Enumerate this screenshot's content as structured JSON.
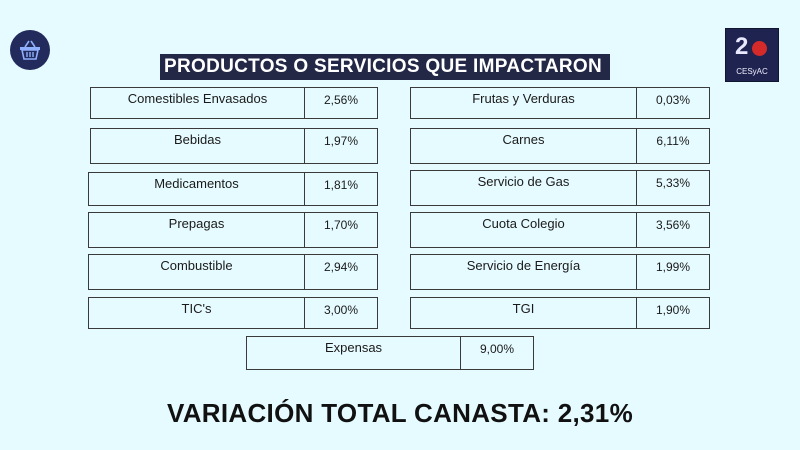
{
  "title": "PRODUCTOS O SERVICIOS QUE IMPACTARON",
  "logo_text": "CESyAC",
  "logo_number": "2",
  "left_items": [
    {
      "name": "Comestibles Envasados",
      "value": "2,56%"
    },
    {
      "name": "Bebidas",
      "value": "1,97%"
    },
    {
      "name": "Medicamentos",
      "value": "1,81%"
    },
    {
      "name": "Prepagas",
      "value": "1,70%"
    },
    {
      "name": "Combustible",
      "value": "2,94%"
    },
    {
      "name": "TIC's",
      "value": "3,00%"
    }
  ],
  "right_items": [
    {
      "name": "Frutas y Verduras",
      "value": "0,03%"
    },
    {
      "name": "Carnes",
      "value": "6,11%"
    },
    {
      "name": "Servicio de Gas",
      "value": "5,33%"
    },
    {
      "name": "Cuota Colegio",
      "value": "3,56%"
    },
    {
      "name": "Servicio de Energía",
      "value": "1,99%"
    },
    {
      "name": "TGI",
      "value": "1,90%"
    }
  ],
  "bottom_item": {
    "name": "Expensas",
    "value": "9,00%"
  },
  "total": "VARIACIÓN TOTAL CANASTA: 2,31%",
  "colors": {
    "background": "#e6fbff",
    "title_bg": "#222846",
    "logo_bg": "#1f2350"
  },
  "icons": {
    "left": "shopping-basket-icon",
    "right": "brand-logo"
  }
}
